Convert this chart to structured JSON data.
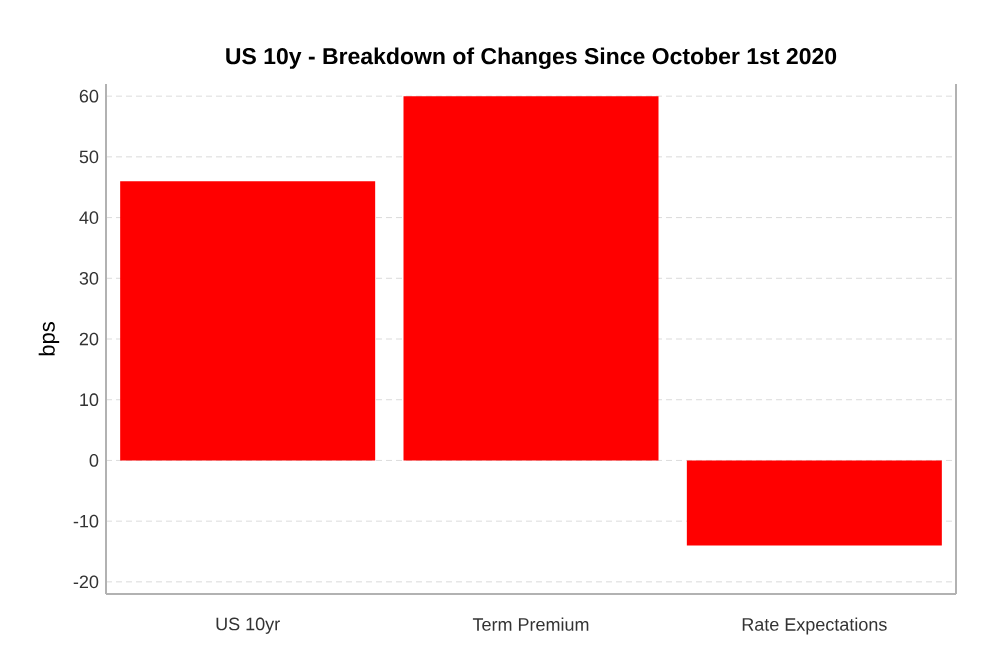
{
  "chart_data": {
    "type": "bar",
    "title": "US 10y - Breakdown of Changes Since October 1st 2020",
    "ylabel": "bps",
    "categories": [
      "US 10yr",
      "Term Premium",
      "Rate Expectations"
    ],
    "values": [
      46,
      60,
      -14
    ],
    "color": "#ff0000",
    "ylim": [
      -22,
      62
    ],
    "yticks": [
      -20,
      -10,
      0,
      10,
      20,
      30,
      40,
      50,
      60
    ],
    "grid": "y"
  }
}
